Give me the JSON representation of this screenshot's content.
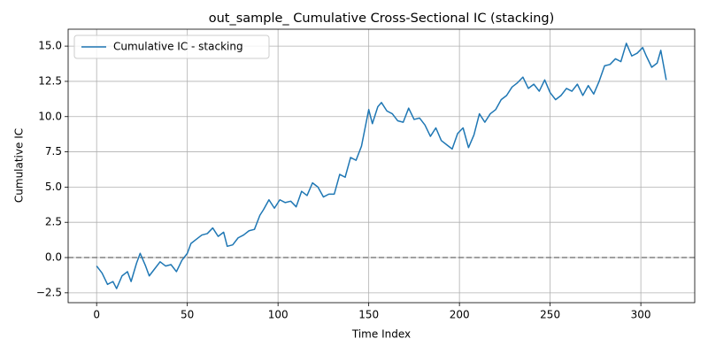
{
  "chart_data": {
    "type": "line",
    "title": "out_sample_ Cumulative Cross-Sectional IC (stacking)",
    "x_label": "Time Index",
    "y_label": "Cumulative IC",
    "x": [
      0,
      3,
      6,
      9,
      11,
      14,
      17,
      19,
      22,
      24,
      27,
      29,
      32,
      35,
      38,
      41,
      44,
      47,
      50,
      52,
      55,
      58,
      61,
      64,
      67,
      70,
      72,
      75,
      78,
      81,
      84,
      87,
      90,
      92,
      95,
      98,
      101,
      104,
      107,
      110,
      113,
      116,
      119,
      122,
      125,
      128,
      131,
      134,
      137,
      140,
      143,
      146,
      148,
      150,
      152,
      155,
      157,
      160,
      163,
      166,
      169,
      172,
      175,
      178,
      181,
      184,
      187,
      190,
      193,
      196,
      199,
      202,
      205,
      208,
      211,
      214,
      217,
      220,
      223,
      226,
      229,
      232,
      235,
      238,
      241,
      244,
      247,
      250,
      253,
      256,
      259,
      262,
      265,
      268,
      271,
      274,
      277,
      280,
      283,
      286,
      289,
      292,
      295,
      298,
      301,
      303,
      306,
      309,
      311,
      314
    ],
    "series": [
      {
        "name": "Cumulative IC - stacking",
        "color": "#1f77b4",
        "values": [
          -0.6,
          -1.1,
          -1.9,
          -1.7,
          -2.2,
          -1.3,
          -1.0,
          -1.7,
          -0.4,
          0.3,
          -0.6,
          -1.3,
          -0.8,
          -0.3,
          -0.6,
          -0.5,
          -1.0,
          -0.2,
          0.3,
          1.0,
          1.3,
          1.6,
          1.7,
          2.1,
          1.5,
          1.8,
          0.8,
          0.9,
          1.4,
          1.6,
          1.9,
          2.0,
          3.0,
          3.4,
          4.1,
          3.5,
          4.1,
          3.9,
          4.0,
          3.6,
          4.7,
          4.4,
          5.3,
          5.0,
          4.3,
          4.5,
          4.5,
          5.9,
          5.7,
          7.1,
          6.9,
          7.9,
          9.2,
          10.5,
          9.5,
          10.7,
          11.0,
          10.4,
          10.2,
          9.7,
          9.6,
          10.6,
          9.8,
          9.9,
          9.4,
          8.6,
          9.2,
          8.3,
          8.0,
          7.7,
          8.8,
          9.2,
          7.8,
          8.7,
          10.2,
          9.6,
          10.2,
          10.5,
          11.2,
          11.5,
          12.1,
          12.4,
          12.8,
          12.0,
          12.3,
          11.8,
          12.6,
          11.7,
          11.2,
          11.5,
          12.0,
          11.8,
          12.3,
          11.5,
          12.2,
          11.6,
          12.5,
          13.6,
          13.7,
          14.1,
          13.9,
          15.2,
          14.3,
          14.5,
          14.9,
          14.3,
          13.5,
          13.8,
          14.7,
          12.6
        ]
      }
    ],
    "reference_line": {
      "y": 0,
      "color": "#808080",
      "style": "dashed"
    },
    "xlim": [
      -15.7,
      329.7
    ],
    "ylim": [
      -3.2,
      16.2
    ],
    "xticks": [
      0,
      50,
      100,
      150,
      200,
      250,
      300
    ],
    "yticks": [
      {
        "value": -2.5,
        "label": "−2.5"
      },
      {
        "value": 0,
        "label": "0.0"
      },
      {
        "value": 2.5,
        "label": "2.5"
      },
      {
        "value": 5,
        "label": "5.0"
      },
      {
        "value": 7.5,
        "label": "7.5"
      },
      {
        "value": 10,
        "label": "10.0"
      },
      {
        "value": 12.5,
        "label": "12.5"
      },
      {
        "value": 15,
        "label": "15.0"
      }
    ],
    "grid": true,
    "legend": "upper left"
  }
}
